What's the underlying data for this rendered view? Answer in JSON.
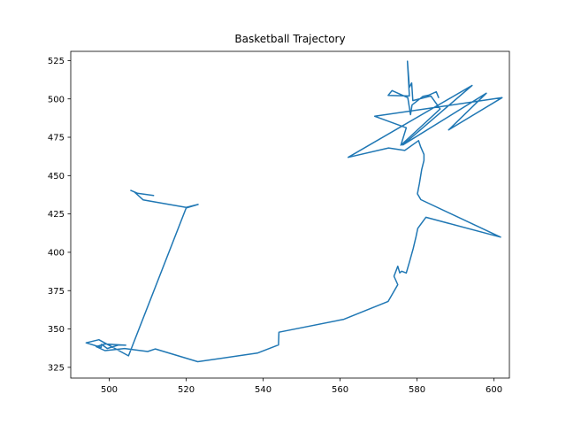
{
  "chart_data": {
    "type": "line",
    "title": "Basketball Trajectory",
    "xlabel": "",
    "ylabel": "",
    "xlim": [
      490,
      604
    ],
    "ylim": [
      318,
      531
    ],
    "xticks": [
      500,
      520,
      540,
      560,
      580,
      600
    ],
    "yticks": [
      325,
      350,
      375,
      400,
      425,
      450,
      475,
      500,
      525
    ],
    "grid": false,
    "legend": "none",
    "series": [
      {
        "color": "#1f77b4",
        "x": [
          511.5,
          507.3,
          505.6,
          506.5,
          508.8,
          520.0,
          523.1,
          520.0,
          505.0,
          497.3,
          494.0,
          497.9,
          498.0,
          499.5,
          502.4,
          504.3,
          498.9,
          496.6,
          498.9,
          504.0,
          510.0,
          512.0,
          523.0,
          538.5,
          544.0,
          544.1,
          561.0,
          564.5,
          572.5,
          575.0,
          574.0,
          575.0,
          575.5,
          576.0,
          577.2,
          578.1,
          579.0,
          579.7,
          580.2,
          582.3,
          601.7,
          581.0,
          580.1,
          580.6,
          581.2,
          581.8,
          581.8,
          580.9,
          580.4,
          576.8,
          572.6,
          562.1,
          594.3,
          576.3,
          598.0,
          588.2,
          602.1,
          569.0,
          577.2,
          575.8,
          586.0,
          583.6,
          578.9,
          578.6,
          578.0,
          577.5,
          578.0,
          572.5,
          573.5,
          577.6,
          578.3,
          578.7,
          581.5,
          583.0,
          585.0,
          585.6
        ],
        "y": [
          437.0,
          438.5,
          440.3,
          439.4,
          434.2,
          429.3,
          431.2,
          428.9,
          332.5,
          343.0,
          341.0,
          338.0,
          340.0,
          337.3,
          339.6,
          339.4,
          340.2,
          338.5,
          335.9,
          337.3,
          335.3,
          337.0,
          328.7,
          334.3,
          339.6,
          347.9,
          356.3,
          359.9,
          368.0,
          378.9,
          384.4,
          390.9,
          386.6,
          387.7,
          386.5,
          394.3,
          402.4,
          409.9,
          415.6,
          422.8,
          409.9,
          434.3,
          438.1,
          444.7,
          453.9,
          459.9,
          463.8,
          469.0,
          472.8,
          466.4,
          468.0,
          461.9,
          508.8,
          470.0,
          503.7,
          479.8,
          500.8,
          488.7,
          481.2,
          469.8,
          493.4,
          501.9,
          498.9,
          510.4,
          507.5,
          524.6,
          501.9,
          502.3,
          505.4,
          500.8,
          489.7,
          496.0,
          501.6,
          502.4,
          504.6,
          501.0
        ]
      }
    ]
  }
}
